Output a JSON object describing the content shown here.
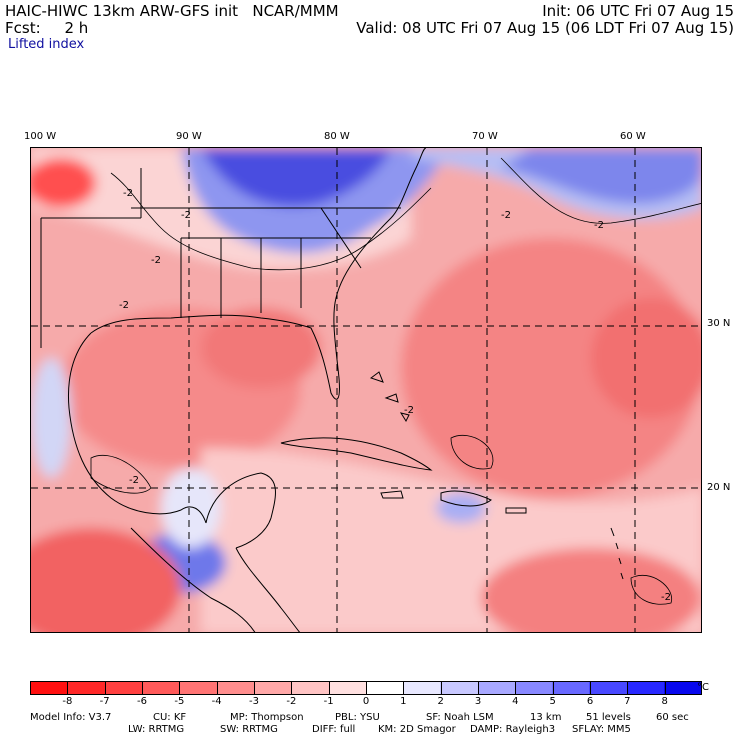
{
  "header": {
    "title": "HAIC-HIWC 13km ARW-GFS init   NCAR/MMM",
    "forecast": "Fcst:     2 h",
    "init": "Init: 06 UTC Fri 07 Aug 15",
    "valid": "Valid: 08 UTC Fri 07 Aug 15 (06 LDT Fri 07 Aug 15)",
    "field": "Lifted index"
  },
  "map": {
    "lon_labels": [
      "100 W",
      "90 W",
      "80 W",
      "70 W",
      "60 W"
    ],
    "lat_labels": [
      "30 N",
      "20 N"
    ],
    "contour_label": "-2"
  },
  "colorbar": {
    "ticks": [
      "-8",
      "-7",
      "-6",
      "-5",
      "-4",
      "-3",
      "-2",
      "-1",
      "0",
      "1",
      "2",
      "3",
      "4",
      "5",
      "6",
      "7",
      "8"
    ],
    "unit": "°C",
    "colors": [
      "#ff1010",
      "#ff2828",
      "#ff4040",
      "#ff5a5a",
      "#ff7474",
      "#ff8e8e",
      "#ffa8a8",
      "#ffc4c4",
      "#ffe0e0",
      "#ffffff",
      "#e8e8ff",
      "#c8c8ff",
      "#a8a8ff",
      "#8888ff",
      "#6868ff",
      "#4848ff",
      "#2828ff",
      "#0808ee"
    ]
  },
  "model_info": {
    "line1": [
      "Model Info: V3.7",
      "CU: KF",
      "MP: Thompson",
      "PBL: YSU",
      "SF: Noah LSM",
      "13 km",
      "51 levels",
      "60 sec"
    ],
    "line2": [
      "LW: RRTMG",
      "SW: RRTMG",
      "DIFF: full",
      "KM: 2D Smagor",
      "DAMP: Rayleigh3",
      "SFLAY: MM5"
    ]
  }
}
